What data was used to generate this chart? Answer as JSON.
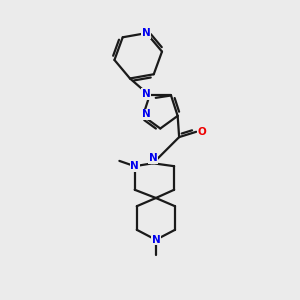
{
  "background_color": "#ebebeb",
  "bond_color": "#1a1a1a",
  "nitrogen_color": "#0000ee",
  "oxygen_color": "#ee0000",
  "line_width": 1.6,
  "figsize": [
    3.0,
    3.0
  ],
  "dpi": 100,
  "xlim": [
    0,
    10
  ],
  "ylim": [
    0,
    10
  ]
}
